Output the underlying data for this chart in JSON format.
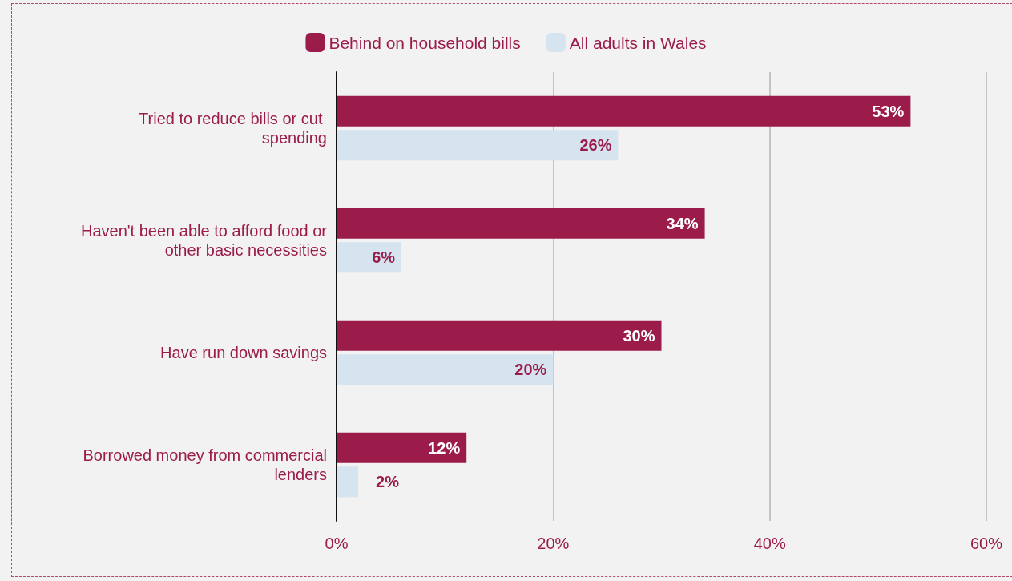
{
  "chart_data": {
    "type": "bar",
    "orientation": "horizontal",
    "categories": [
      "Tried to reduce bills or cut spending",
      "Haven't been able to afford food or other basic necessities",
      "Have run down savings",
      "Borrowed money from commercial lenders"
    ],
    "series": [
      {
        "name": "Behind on household bills",
        "color": "#9b1b4a",
        "values": [
          53,
          34,
          30,
          12
        ],
        "value_labels": [
          "53%",
          "34%",
          "30%",
          "12%"
        ]
      },
      {
        "name": "All adults in Wales",
        "color": "#d5e4ef",
        "values": [
          26,
          6,
          20,
          2
        ],
        "value_labels": [
          "26%",
          "6%",
          "20%",
          "2%"
        ]
      }
    ],
    "xlim": [
      0,
      60
    ],
    "xticks": [
      {
        "value": 0,
        "label": "0%"
      },
      {
        "value": 20,
        "label": "20%"
      },
      {
        "value": 40,
        "label": "40%"
      },
      {
        "value": 60,
        "label": "60%"
      }
    ],
    "grid": "x",
    "legend": "top"
  }
}
